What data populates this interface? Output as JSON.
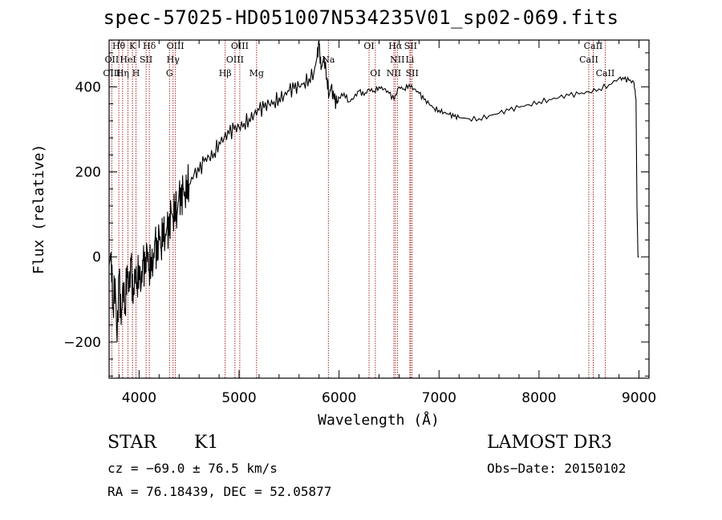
{
  "chart_data": {
    "type": "line",
    "title": "spec-57025-HD051007N534235V01_sp02-069.fits",
    "xlabel": "Wavelength (Å)",
    "ylabel": "Flux (relative)",
    "xlim": [
      3700,
      9100
    ],
    "ylim": [
      -285,
      510
    ],
    "x_ticks": [
      4000,
      5000,
      6000,
      7000,
      8000,
      9000
    ],
    "y_ticks": [
      -200,
      0,
      200,
      400
    ],
    "grid": false,
    "series": [
      {
        "points": [
          [
            3700,
            -20
          ],
          [
            3720,
            10
          ],
          [
            3740,
            -120
          ],
          [
            3760,
            -50
          ],
          [
            3780,
            -200
          ],
          [
            3800,
            -40
          ],
          [
            3820,
            -160
          ],
          [
            3840,
            -60
          ],
          [
            3860,
            -120
          ],
          [
            3880,
            -20
          ],
          [
            3900,
            -80
          ],
          [
            3920,
            -10
          ],
          [
            3940,
            -110
          ],
          [
            3960,
            -30
          ],
          [
            3980,
            -60
          ],
          [
            4000,
            -20
          ],
          [
            4020,
            -70
          ],
          [
            4040,
            -10
          ],
          [
            4060,
            -40
          ],
          [
            4080,
            20
          ],
          [
            4100,
            -30
          ],
          [
            4120,
            0
          ],
          [
            4140,
            -20
          ],
          [
            4160,
            40
          ],
          [
            4180,
            -10
          ],
          [
            4200,
            60
          ],
          [
            4220,
            20
          ],
          [
            4240,
            80
          ],
          [
            4260,
            40
          ],
          [
            4280,
            70
          ],
          [
            4300,
            50
          ],
          [
            4320,
            110
          ],
          [
            4340,
            90
          ],
          [
            4360,
            130
          ],
          [
            4380,
            100
          ],
          [
            4400,
            150
          ],
          [
            4420,
            120
          ],
          [
            4440,
            160
          ],
          [
            4460,
            140
          ],
          [
            4480,
            180
          ],
          [
            4500,
            170
          ],
          [
            4550,
            195
          ],
          [
            4600,
            200
          ],
          [
            4650,
            225
          ],
          [
            4700,
            235
          ],
          [
            4750,
            245
          ],
          [
            4800,
            270
          ],
          [
            4850,
            280
          ],
          [
            4900,
            290
          ],
          [
            4950,
            300
          ],
          [
            5000,
            305
          ],
          [
            5050,
            315
          ],
          [
            5100,
            325
          ],
          [
            5150,
            335
          ],
          [
            5200,
            345
          ],
          [
            5250,
            350
          ],
          [
            5300,
            360
          ],
          [
            5350,
            365
          ],
          [
            5400,
            375
          ],
          [
            5450,
            380
          ],
          [
            5500,
            390
          ],
          [
            5550,
            395
          ],
          [
            5600,
            400
          ],
          [
            5650,
            410
          ],
          [
            5700,
            420
          ],
          [
            5750,
            435
          ],
          [
            5780,
            470
          ],
          [
            5800,
            500
          ],
          [
            5820,
            440
          ],
          [
            5850,
            470
          ],
          [
            5880,
            420
          ],
          [
            5900,
            380
          ],
          [
            5920,
            400
          ],
          [
            5950,
            370
          ],
          [
            5980,
            360
          ],
          [
            6000,
            375
          ],
          [
            6050,
            385
          ],
          [
            6100,
            365
          ],
          [
            6150,
            375
          ],
          [
            6200,
            390
          ],
          [
            6250,
            380
          ],
          [
            6300,
            395
          ],
          [
            6350,
            390
          ],
          [
            6400,
            400
          ],
          [
            6450,
            395
          ],
          [
            6500,
            385
          ],
          [
            6550,
            370
          ],
          [
            6600,
            400
          ],
          [
            6650,
            395
          ],
          [
            6700,
            405
          ],
          [
            6750,
            395
          ],
          [
            6800,
            385
          ],
          [
            6850,
            370
          ],
          [
            6900,
            360
          ],
          [
            6950,
            350
          ],
          [
            7000,
            345
          ],
          [
            7050,
            340
          ],
          [
            7100,
            335
          ],
          [
            7150,
            330
          ],
          [
            7200,
            328
          ],
          [
            7300,
            325
          ],
          [
            7400,
            325
          ],
          [
            7500,
            332
          ],
          [
            7600,
            338
          ],
          [
            7700,
            345
          ],
          [
            7800,
            352
          ],
          [
            7900,
            358
          ],
          [
            8000,
            365
          ],
          [
            8100,
            370
          ],
          [
            8200,
            375
          ],
          [
            8300,
            380
          ],
          [
            8400,
            383
          ],
          [
            8500,
            388
          ],
          [
            8600,
            395
          ],
          [
            8700,
            405
          ],
          [
            8800,
            420
          ],
          [
            8850,
            418
          ],
          [
            8900,
            415
          ],
          [
            8950,
            410
          ],
          [
            8970,
            370
          ],
          [
            8980,
            120
          ],
          [
            8990,
            0
          ],
          [
            9000,
            0
          ]
        ]
      }
    ],
    "line_labels": [
      {
        "label": "Hθ",
        "x": 3797,
        "row": 1
      },
      {
        "label": "OII",
        "x": 3727,
        "row": 2
      },
      {
        "label": "OIII",
        "x": 3727,
        "row": 3
      },
      {
        "label": "K",
        "x": 3934,
        "row": 1
      },
      {
        "label": "HeI",
        "x": 3889,
        "row": 2
      },
      {
        "label": "Hη",
        "x": 3835,
        "row": 3
      },
      {
        "label": "Hδ",
        "x": 4102,
        "row": 1
      },
      {
        "label": "SII",
        "x": 4070,
        "row": 2
      },
      {
        "label": "H",
        "x": 3969,
        "row": 3
      },
      {
        "label": "OIII",
        "x": 4363,
        "row": 1
      },
      {
        "label": "Hγ",
        "x": 4340,
        "row": 2
      },
      {
        "label": "G",
        "x": 4304,
        "row": 3
      },
      {
        "label": "OIII",
        "x": 5007,
        "row": 1
      },
      {
        "label": "OIII",
        "x": 4959,
        "row": 2
      },
      {
        "label": "Hβ",
        "x": 4861,
        "row": 3
      },
      {
        "label": "Mg",
        "x": 5175,
        "row": 3
      },
      {
        "label": "Na",
        "x": 5893,
        "row": 2
      },
      {
        "label": "OI",
        "x": 6300,
        "row": 1
      },
      {
        "label": "OI",
        "x": 6363,
        "row": 3
      },
      {
        "label": "Hα",
        "x": 6563,
        "row": 1
      },
      {
        "label": "SII",
        "x": 6716,
        "row": 1
      },
      {
        "label": "NII",
        "x": 6583,
        "row": 2
      },
      {
        "label": "Li",
        "x": 6708,
        "row": 2
      },
      {
        "label": "NII",
        "x": 6548,
        "row": 3
      },
      {
        "label": "SII",
        "x": 6731,
        "row": 3
      },
      {
        "label": "CaII",
        "x": 8542,
        "row": 1
      },
      {
        "label": "CaII",
        "x": 8498,
        "row": 2
      },
      {
        "label": "CaII",
        "x": 8662,
        "row": 3
      }
    ],
    "colors": {
      "spectrum": "#000000",
      "markers": "#a01010"
    }
  },
  "info": {
    "object_class": "STAR",
    "subclass": "K1",
    "cz": "cz = −69.0 ± 76.5 km/s",
    "coords": "RA =  76.18439, DEC =  52.05877",
    "survey": "LAMOST DR3",
    "obs_date": "Obs−Date: 20150102"
  }
}
